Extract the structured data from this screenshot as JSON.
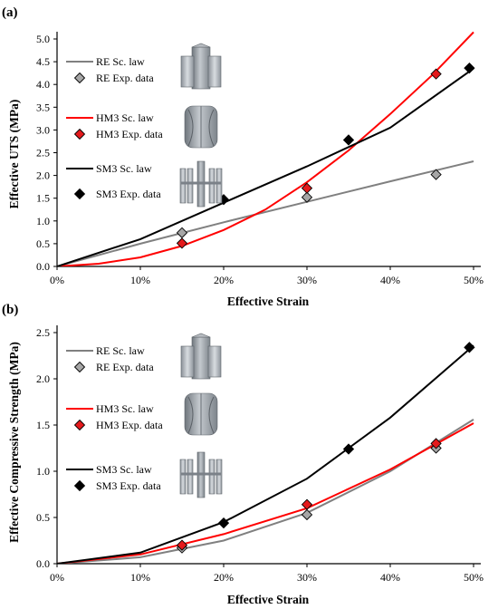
{
  "chart_data": [
    {
      "type": "line",
      "panel_label": "(a)",
      "xlabel": "Effective Strain",
      "ylabel": "Effective UTS (MPa)",
      "xlim": [
        0,
        50
      ],
      "ylim": [
        0,
        5.0
      ],
      "x_ticks": [
        0,
        10,
        20,
        30,
        40,
        50
      ],
      "x_tick_labels": [
        "0%",
        "10%",
        "20%",
        "30%",
        "40%",
        "50%"
      ],
      "y_ticks": [
        0,
        0.5,
        1.0,
        1.5,
        2.0,
        2.5,
        3.0,
        3.5,
        4.0,
        4.5,
        5.0
      ],
      "y_tick_labels": [
        "0.0",
        "0.5",
        "1.0",
        "1.5",
        "2.0",
        "2.5",
        "3.0",
        "3.5",
        "4.0",
        "4.5",
        "5.0"
      ],
      "grid": false,
      "legend_position": "top-left",
      "series": [
        {
          "name": "RE Sc. law",
          "kind": "line",
          "color": "#808080",
          "x": [
            0,
            10,
            20,
            30,
            40,
            50
          ],
          "y": [
            0,
            0.5,
            0.97,
            1.42,
            1.87,
            2.31
          ]
        },
        {
          "name": "RE Exp. data",
          "kind": "marker",
          "color": "#a6a6a6",
          "x": [
            15,
            30,
            45.5
          ],
          "y": [
            0.74,
            1.52,
            2.02
          ]
        },
        {
          "name": "HM3 Sc. law",
          "kind": "line",
          "color": "#ff0000",
          "x": [
            0,
            5,
            10,
            15,
            20,
            25,
            30,
            35,
            40,
            45,
            50
          ],
          "y": [
            0,
            0.06,
            0.2,
            0.45,
            0.8,
            1.25,
            1.85,
            2.55,
            3.35,
            4.2,
            5.15
          ]
        },
        {
          "name": "HM3 Exp. data",
          "kind": "marker",
          "color": "#e41a1c",
          "x": [
            15,
            30,
            45.5
          ],
          "y": [
            0.51,
            1.72,
            4.23
          ]
        },
        {
          "name": "SM3 Sc. law",
          "kind": "line",
          "color": "#000000",
          "x": [
            0,
            10,
            20,
            30,
            40,
            50
          ],
          "y": [
            0,
            0.6,
            1.4,
            2.2,
            3.05,
            4.35
          ]
        },
        {
          "name": "SM3 Exp. data",
          "kind": "marker",
          "color": "#000000",
          "x": [
            20,
            35,
            49.5
          ],
          "y": [
            1.47,
            2.78,
            4.36
          ]
        }
      ]
    },
    {
      "type": "line",
      "panel_label": "(b)",
      "xlabel": "Effective Strain",
      "ylabel": "Effective Compressive Strength (MPa)",
      "xlim": [
        0,
        50
      ],
      "ylim": [
        0,
        2.5
      ],
      "x_ticks": [
        0,
        10,
        20,
        30,
        40,
        50
      ],
      "x_tick_labels": [
        "0%",
        "10%",
        "20%",
        "30%",
        "40%",
        "50%"
      ],
      "y_ticks": [
        0,
        0.5,
        1.0,
        1.5,
        2.0,
        2.5
      ],
      "y_tick_labels": [
        "0.0",
        "0.5",
        "1.0",
        "1.5",
        "2.0",
        "2.5"
      ],
      "grid": false,
      "legend_position": "top-left",
      "series": [
        {
          "name": "RE Sc. law",
          "kind": "line",
          "color": "#808080",
          "x": [
            0,
            10,
            20,
            30,
            40,
            50
          ],
          "y": [
            0,
            0.07,
            0.25,
            0.55,
            1.0,
            1.56
          ]
        },
        {
          "name": "RE Exp. data",
          "kind": "marker",
          "color": "#a6a6a6",
          "x": [
            15,
            30,
            45.5
          ],
          "y": [
            0.17,
            0.53,
            1.25
          ]
        },
        {
          "name": "HM3 Sc. law",
          "kind": "line",
          "color": "#ff0000",
          "x": [
            0,
            10,
            20,
            30,
            40,
            50
          ],
          "y": [
            0,
            0.1,
            0.32,
            0.6,
            1.02,
            1.52
          ]
        },
        {
          "name": "HM3 Exp. data",
          "kind": "marker",
          "color": "#e41a1c",
          "x": [
            15,
            30,
            45.5
          ],
          "y": [
            0.2,
            0.64,
            1.3
          ]
        },
        {
          "name": "SM3 Sc. law",
          "kind": "line",
          "color": "#000000",
          "x": [
            0,
            10,
            20,
            30,
            40,
            50
          ],
          "y": [
            0,
            0.12,
            0.45,
            0.92,
            1.58,
            2.36
          ]
        },
        {
          "name": "SM3 Exp. data",
          "kind": "marker",
          "color": "#000000",
          "x": [
            20,
            35,
            49.5
          ],
          "y": [
            0.44,
            1.24,
            2.34
          ]
        }
      ]
    }
  ]
}
